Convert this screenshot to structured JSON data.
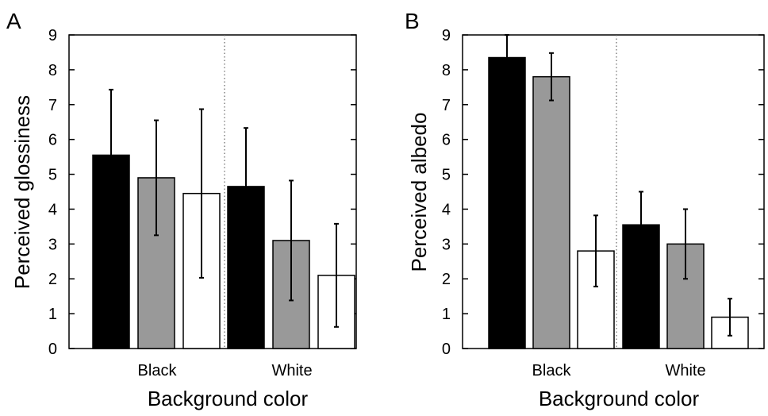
{
  "chart_data": [
    {
      "panel_label": "A",
      "type": "bar",
      "categories": [
        "Black",
        "White"
      ],
      "series": [
        {
          "color": "#000000",
          "values": [
            5.55,
            4.65
          ],
          "errors": [
            1.88,
            1.68
          ]
        },
        {
          "color": "#999999",
          "values": [
            4.9,
            3.1
          ],
          "errors": [
            1.65,
            1.72
          ]
        },
        {
          "color": "#ffffff",
          "values": [
            4.45,
            2.1
          ],
          "errors": [
            2.42,
            1.48
          ]
        }
      ],
      "xlabel": "Background color",
      "ylabel": "Perceived glossiness",
      "ylim": [
        0,
        9
      ],
      "yticks": [
        "0",
        "1",
        "2",
        "3",
        "4",
        "5",
        "6",
        "7",
        "8",
        "9"
      ]
    },
    {
      "panel_label": "B",
      "type": "bar",
      "categories": [
        "Black",
        "White"
      ],
      "series": [
        {
          "color": "#000000",
          "values": [
            8.35,
            3.55
          ],
          "errors": [
            0.65,
            0.95
          ]
        },
        {
          "color": "#999999",
          "values": [
            7.8,
            3.0
          ],
          "errors": [
            0.68,
            1.0
          ]
        },
        {
          "color": "#ffffff",
          "values": [
            2.8,
            0.9
          ],
          "errors": [
            1.02,
            0.53
          ]
        }
      ],
      "xlabel": "Background color",
      "ylabel": "Perceived albedo",
      "ylim": [
        0,
        9
      ],
      "yticks": [
        "0",
        "1",
        "2",
        "3",
        "4",
        "5",
        "6",
        "7",
        "8",
        "9"
      ]
    }
  ]
}
